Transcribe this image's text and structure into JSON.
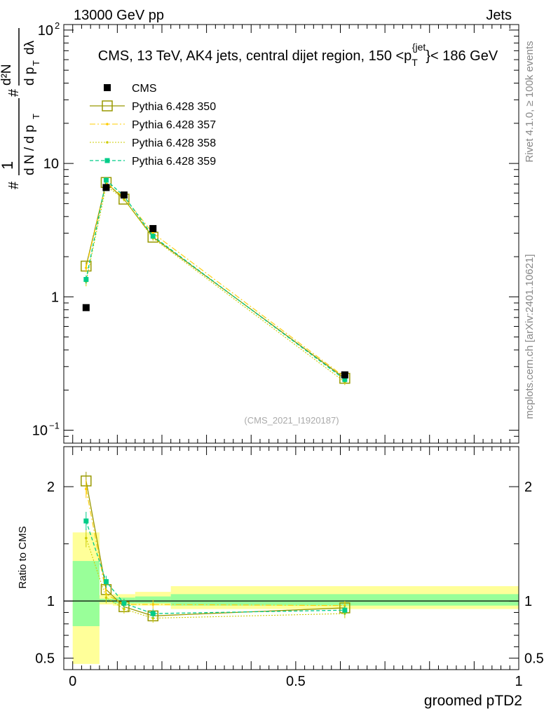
{
  "header": {
    "energy_label": "13000 GeV pp",
    "process_label": "Jets"
  },
  "side": {
    "rivet_label": "Rivet 4.1.0, ≥ 100k events",
    "source_label": "mcplots.cern.ch [arXiv:2401.10621]"
  },
  "colors": {
    "cms": "#000000",
    "p350": "#999900",
    "p357": "#ffcc00",
    "p358": "#cccc00",
    "p359": "#00cc88",
    "band_outer": "#ffff99",
    "band_inner": "#99ff99"
  },
  "chart_data": [
    {
      "type": "scatter",
      "panel": "main",
      "title": "CMS, 13 TeV, AK4 jets, central dijet region, 150 <p",
      "title_sub": "T",
      "title_sup": "{jet",
      "title_tail": "}< 186 GeV",
      "ylabel": "#1/dN/dp_T # d²N/dp_T dλ",
      "yscale": "log",
      "ylim": [
        0.08,
        110
      ],
      "xlim": [
        -0.02,
        1.0
      ],
      "yticks": [
        {
          "value": 100,
          "mant": "10",
          "exp": "2"
        },
        {
          "value": 10,
          "mant": "10",
          "exp": ""
        },
        {
          "value": 1,
          "mant": "1",
          "exp": ""
        },
        {
          "value": 0.1,
          "mant": "10",
          "exp": "−1"
        }
      ],
      "analysis_label": "(CMS_2021_I1920187)",
      "x": [
        0.03,
        0.075,
        0.115,
        0.18,
        0.61
      ],
      "series": [
        {
          "name": "CMS",
          "key": "cms",
          "values": [
            0.83,
            6.6,
            5.8,
            3.25,
            0.26
          ],
          "errors": [
            0.02,
            0.25,
            0.2,
            0.15,
            0.015
          ]
        },
        {
          "name": "Pythia 6.428 350",
          "key": "p350",
          "values": [
            1.7,
            7.2,
            5.4,
            2.8,
            0.245
          ],
          "errors": [
            0.12,
            0.3,
            0.2,
            0.12,
            0.012
          ]
        },
        {
          "name": "Pythia 6.428 357",
          "key": "p357",
          "values": [
            1.65,
            7.1,
            5.6,
            3.0,
            0.25
          ],
          "errors": [
            0.12,
            0.3,
            0.2,
            0.12,
            0.012
          ]
        },
        {
          "name": "Pythia 6.428 358",
          "key": "p358",
          "values": [
            1.3,
            6.8,
            5.4,
            2.75,
            0.23
          ],
          "errors": [
            0.1,
            0.3,
            0.2,
            0.12,
            0.012
          ]
        },
        {
          "name": "Pythia 6.428 359",
          "key": "p359",
          "values": [
            1.35,
            7.5,
            5.7,
            2.85,
            0.24
          ],
          "errors": [
            0.1,
            0.3,
            0.2,
            0.12,
            0.012
          ]
        }
      ]
    },
    {
      "type": "line",
      "panel": "ratio",
      "xlabel": "groomed pTD2",
      "ylabel": "Ratio to CMS",
      "ylim": [
        0.4,
        2.35
      ],
      "xlim": [
        -0.02,
        1.0
      ],
      "yticks": [
        {
          "value": 2,
          "label": "2"
        },
        {
          "value": 1,
          "label": "1"
        },
        {
          "value": 0.5,
          "label": "0.5"
        }
      ],
      "xticks": [
        {
          "value": 0,
          "label": "0"
        },
        {
          "value": 0.5,
          "label": "0.5"
        },
        {
          "value": 1,
          "label": "1"
        }
      ],
      "bands": [
        {
          "x0": 0.0,
          "x1": 0.06,
          "outer": [
            0.45,
            1.6
          ],
          "inner": [
            0.78,
            1.35
          ]
        },
        {
          "x0": 0.06,
          "x1": 0.09,
          "outer": [
            0.97,
            1.05
          ],
          "inner": [
            0.99,
            1.02
          ]
        },
        {
          "x0": 0.09,
          "x1": 0.14,
          "outer": [
            0.96,
            1.06
          ],
          "inner": [
            0.98,
            1.03
          ]
        },
        {
          "x0": 0.14,
          "x1": 0.22,
          "outer": [
            0.96,
            1.08
          ],
          "inner": [
            0.98,
            1.04
          ]
        },
        {
          "x0": 0.22,
          "x1": 1.0,
          "outer": [
            0.93,
            1.13
          ],
          "inner": [
            0.96,
            1.06
          ]
        }
      ],
      "x": [
        0.03,
        0.075,
        0.115,
        0.18,
        0.61
      ],
      "series": [
        {
          "name": "Pythia 6.428 350",
          "key": "p350",
          "values": [
            2.05,
            1.1,
            0.95,
            0.87,
            0.94
          ],
          "errors": [
            0.08,
            0.05,
            0.04,
            0.04,
            0.04
          ]
        },
        {
          "name": "Pythia 6.428 357",
          "key": "p357",
          "values": [
            1.98,
            1.06,
            0.97,
            0.97,
            0.96
          ],
          "errors": [
            0.08,
            0.05,
            0.04,
            0.04,
            0.04
          ]
        },
        {
          "name": "Pythia 6.428 358",
          "key": "p358",
          "values": [
            1.55,
            1.03,
            0.93,
            0.85,
            0.89
          ],
          "errors": [
            0.08,
            0.05,
            0.04,
            0.04,
            0.04
          ]
        },
        {
          "name": "Pythia 6.428 359",
          "key": "p359",
          "values": [
            1.7,
            1.17,
            0.98,
            0.89,
            0.92
          ],
          "errors": [
            0.08,
            0.05,
            0.04,
            0.04,
            0.04
          ]
        }
      ]
    }
  ]
}
